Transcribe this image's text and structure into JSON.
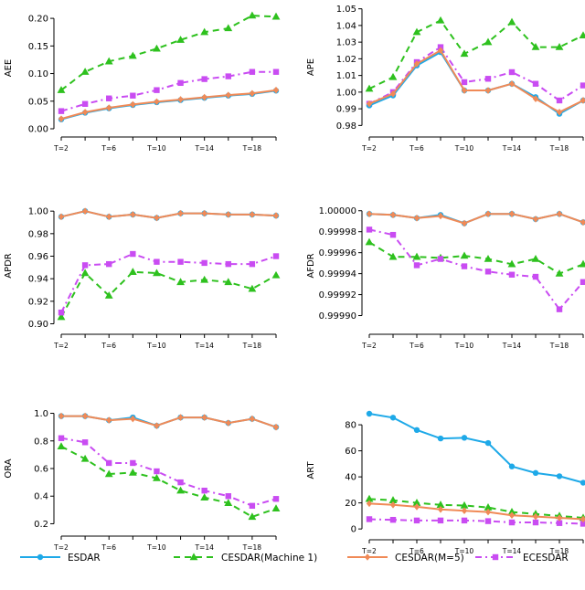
{
  "chart_data": {
    "type": "line",
    "x_labels": [
      "T=2",
      "T=6",
      "T=10",
      "T=14",
      "T=18"
    ],
    "x": [
      2,
      4,
      6,
      8,
      10,
      12,
      14,
      16,
      18,
      20
    ],
    "series_styles": [
      {
        "name": "ESDAR",
        "color": "#1EA9E8",
        "marker": "circle",
        "dash": ""
      },
      {
        "name": "CESDAR(Machine 1)",
        "color": "#2EC11E",
        "marker": "triangle",
        "dash": "7,5"
      },
      {
        "name": "CESDAR(M=5)",
        "color": "#F08A57",
        "marker": "diamond",
        "dash": ""
      },
      {
        "name": "ECESDAR",
        "color": "#C94CF2",
        "marker": "square",
        "dash": "7,4,2,4"
      }
    ],
    "panels": [
      {
        "id": "aee",
        "ylabel": "AEE",
        "ylim": [
          0,
          0.22
        ],
        "yticks": [
          "0.00",
          "0.05",
          "0.10",
          "0.15",
          "0.20"
        ],
        "ytick_values": [
          0,
          0.05,
          0.1,
          0.15,
          0.2
        ],
        "series": [
          {
            "name": "ESDAR",
            "values": [
              0.017,
              0.029,
              0.037,
              0.043,
              0.048,
              0.052,
              0.056,
              0.06,
              0.063,
              0.069
            ]
          },
          {
            "name": "CESDAR(Machine 1)",
            "values": [
              0.07,
              0.103,
              0.122,
              0.132,
              0.145,
              0.161,
              0.175,
              0.182,
              0.205,
              0.203
            ]
          },
          {
            "name": "CESDAR(M=5)",
            "values": [
              0.018,
              0.03,
              0.038,
              0.044,
              0.049,
              0.053,
              0.057,
              0.061,
              0.064,
              0.07
            ]
          },
          {
            "name": "ECESDAR",
            "values": [
              0.032,
              0.045,
              0.055,
              0.06,
              0.07,
              0.083,
              0.09,
              0.095,
              0.103,
              0.103
            ]
          }
        ]
      },
      {
        "id": "ape",
        "ylabel": "APE",
        "ylim": [
          0.978,
          1.052
        ],
        "yticks": [
          "0.98",
          "0.99",
          "1.00",
          "1.01",
          "1.02",
          "1.03",
          "1.04",
          "1.05"
        ],
        "ytick_values": [
          0.98,
          0.99,
          1.0,
          1.01,
          1.02,
          1.03,
          1.04,
          1.05
        ],
        "series": [
          {
            "name": "ESDAR",
            "values": [
              0.992,
              0.998,
              1.016,
              1.024,
              1.001,
              1.001,
              1.005,
              0.997,
              0.987,
              0.995
            ]
          },
          {
            "name": "CESDAR(Machine 1)",
            "values": [
              1.002,
              1.009,
              1.036,
              1.043,
              1.023,
              1.03,
              1.042,
              1.027,
              1.027,
              1.034
            ]
          },
          {
            "name": "CESDAR(M=5)",
            "values": [
              0.993,
              0.999,
              1.017,
              1.025,
              1.001,
              1.001,
              1.005,
              0.996,
              0.988,
              0.995
            ]
          },
          {
            "name": "ECESDAR",
            "values": [
              0.993,
              1.0,
              1.018,
              1.027,
              1.006,
              1.008,
              1.012,
              1.005,
              0.995,
              1.004
            ]
          }
        ]
      },
      {
        "id": "apdr",
        "ylabel": "APDR",
        "ylim": [
          0.898,
          1.005
        ],
        "yticks": [
          "0.90",
          "0.92",
          "0.94",
          "0.96",
          "0.98",
          "1.00"
        ],
        "ytick_values": [
          0.9,
          0.92,
          0.94,
          0.96,
          0.98,
          1.0
        ],
        "series": [
          {
            "name": "ESDAR",
            "values": [
              0.995,
              1.0,
              0.995,
              0.997,
              0.994,
              0.998,
              0.998,
              0.997,
              0.997,
              0.996
            ]
          },
          {
            "name": "CESDAR(Machine 1)",
            "values": [
              0.906,
              0.945,
              0.925,
              0.946,
              0.945,
              0.937,
              0.939,
              0.937,
              0.931,
              0.943
            ]
          },
          {
            "name": "CESDAR(M=5)",
            "values": [
              0.995,
              1.0,
              0.995,
              0.997,
              0.994,
              0.998,
              0.998,
              0.997,
              0.997,
              0.996
            ]
          },
          {
            "name": "ECESDAR",
            "values": [
              0.91,
              0.952,
              0.953,
              0.962,
              0.955,
              0.955,
              0.954,
              0.953,
              0.953,
              0.96
            ]
          }
        ]
      },
      {
        "id": "afdr",
        "ylabel": "AFDR",
        "ylim": [
          0.99989,
          1.000005
        ],
        "yticks": [
          "0.99990",
          "0.99992",
          "0.99994",
          "0.99996",
          "0.99998",
          "1.00000"
        ],
        "ytick_values": [
          0.9999,
          0.99992,
          0.99994,
          0.99996,
          0.99998,
          1.0
        ],
        "series": [
          {
            "name": "ESDAR",
            "values": [
              0.999997,
              0.999996,
              0.999993,
              0.999996,
              0.999988,
              0.999997,
              0.999997,
              0.999992,
              0.999997,
              0.999989
            ]
          },
          {
            "name": "CESDAR(Machine 1)",
            "values": [
              0.99997,
              0.999956,
              0.999956,
              0.999955,
              0.999957,
              0.999954,
              0.999949,
              0.999954,
              0.99994,
              0.999949
            ]
          },
          {
            "name": "CESDAR(M=5)",
            "values": [
              0.999997,
              0.999996,
              0.999993,
              0.999995,
              0.999988,
              0.999997,
              0.999997,
              0.999992,
              0.999997,
              0.999989
            ]
          },
          {
            "name": "ECESDAR",
            "values": [
              0.999982,
              0.999977,
              0.999948,
              0.999954,
              0.999947,
              0.999942,
              0.999939,
              0.999937,
              0.999906,
              0.999932
            ]
          }
        ]
      },
      {
        "id": "ora",
        "ylabel": "ORA",
        "ylim": [
          0.17,
          1.03
        ],
        "yticks": [
          "0.2",
          "0.4",
          "0.6",
          "0.8",
          "1.0"
        ],
        "ytick_values": [
          0.2,
          0.4,
          0.6,
          0.8,
          1.0
        ],
        "series": [
          {
            "name": "ESDAR",
            "values": [
              0.98,
              0.98,
              0.95,
              0.97,
              0.91,
              0.97,
              0.97,
              0.93,
              0.96,
              0.9
            ]
          },
          {
            "name": "CESDAR(Machine 1)",
            "values": [
              0.76,
              0.67,
              0.56,
              0.57,
              0.53,
              0.44,
              0.39,
              0.35,
              0.25,
              0.31
            ]
          },
          {
            "name": "CESDAR(M=5)",
            "values": [
              0.98,
              0.98,
              0.95,
              0.96,
              0.91,
              0.97,
              0.97,
              0.93,
              0.96,
              0.9
            ]
          },
          {
            "name": "ECESDAR",
            "values": [
              0.82,
              0.79,
              0.64,
              0.64,
              0.58,
              0.5,
              0.44,
              0.4,
              0.33,
              0.38
            ]
          }
        ]
      },
      {
        "id": "art",
        "ylabel": "ART",
        "ylim": [
          -2,
          92
        ],
        "yticks": [
          "0",
          "20",
          "40",
          "60",
          "80"
        ],
        "ytick_values": [
          0,
          20,
          40,
          60,
          80
        ],
        "series": [
          {
            "name": "ESDAR",
            "values": [
              88.5,
              85.5,
              76,
              69.5,
              70,
              66,
              48,
              43,
              40.5,
              35.5
            ]
          },
          {
            "name": "CESDAR(Machine 1)",
            "values": [
              23,
              22,
              20,
              18.5,
              18,
              16.5,
              13,
              11.5,
              10,
              8.5
            ]
          },
          {
            "name": "CESDAR(M=5)",
            "values": [
              19.5,
              18.5,
              17,
              15,
              14,
              13,
              10.5,
              9.5,
              8.5,
              7.5
            ]
          },
          {
            "name": "ECESDAR",
            "values": [
              7.5,
              7,
              6.5,
              6.5,
              6.5,
              6,
              5,
              5,
              4.5,
              4
            ]
          }
        ]
      }
    ],
    "legend": [
      "ESDAR",
      "CESDAR(Machine 1)",
      "CESDAR(M=5)",
      "ECESDAR"
    ]
  }
}
